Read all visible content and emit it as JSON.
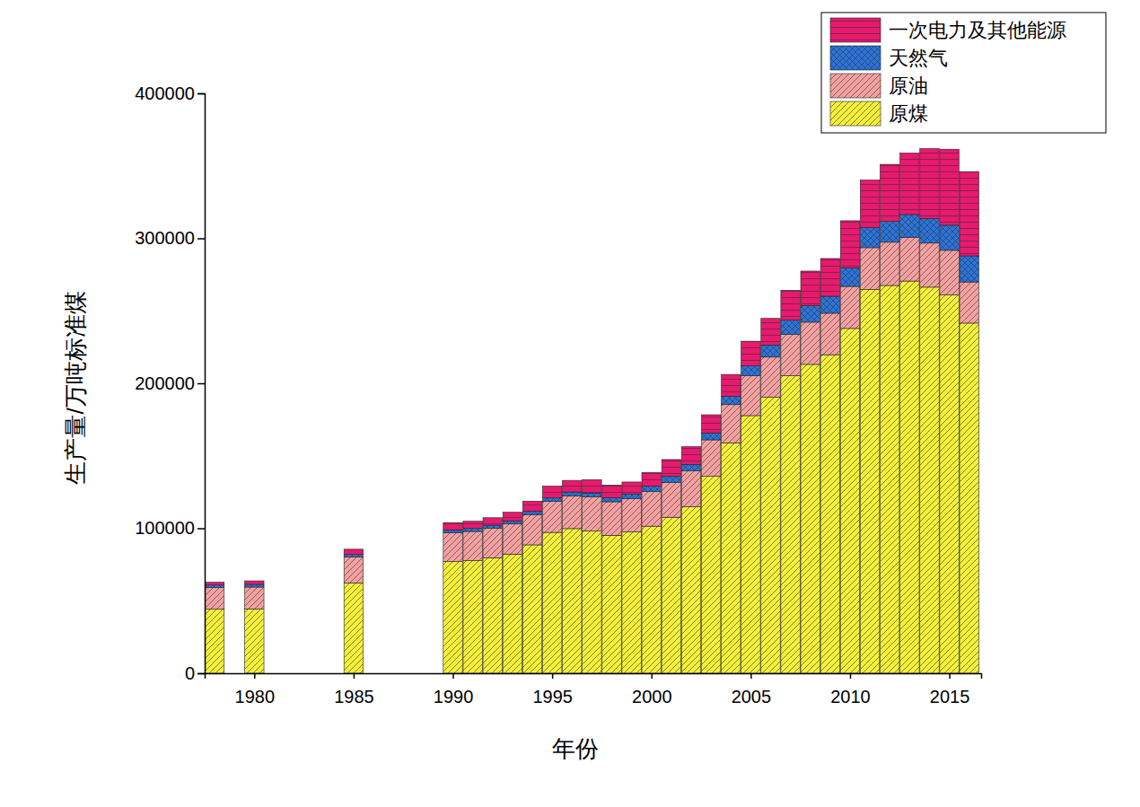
{
  "chart_data": {
    "type": "bar",
    "stacked": true,
    "legend": "upper right",
    "x_label": "年份",
    "y_label": "生产量/万吨标准煤",
    "x": [
      1978,
      1980,
      1985,
      1990,
      1991,
      1992,
      1993,
      1994,
      1995,
      1996,
      1997,
      1998,
      1999,
      2000,
      2001,
      2002,
      2003,
      2004,
      2005,
      2006,
      2007,
      2008,
      2009,
      2010,
      2011,
      2012,
      2013,
      2014,
      2015,
      2016
    ],
    "xlim": [
      1977.5,
      2016.6
    ],
    "xticks": [
      1980,
      1985,
      1990,
      1995,
      2000,
      2005,
      2010,
      2015
    ],
    "ylim": [
      0,
      400000
    ],
    "yticks": [
      0,
      100000,
      200000,
      300000,
      400000
    ],
    "series": [
      {
        "name": "原煤",
        "color": "#f4f03a",
        "values": [
          44127,
          44283,
          62328,
          77112,
          77690,
          79691,
          82184,
          88572,
          97163,
          99774,
          98093,
          95168,
          97500,
          101433,
          107620,
          114864,
          135864,
          158909,
          177733,
          190426,
          205262,
          213058,
          219719,
          237839,
          264658,
          267493,
          270523,
          266333,
          260986,
          241534
        ]
      },
      {
        "name": "原油",
        "color": "#f4a0a0",
        "values": [
          14877,
          15166,
          17872,
          19745,
          20130,
          20271,
          20768,
          20896,
          21420,
          22615,
          23489,
          23110,
          22825,
          23834,
          24030,
          24692,
          25140,
          26382,
          27484,
          27658,
          28531,
          29129,
          28609,
          29028,
          28915,
          29838,
          30138,
          30397,
          30725,
          28375
        ]
      },
      {
        "name": "天然气",
        "color": "#2a74dc",
        "values": [
          1820,
          1912,
          1711,
          2078,
          2097,
          2145,
          2221,
          2256,
          2452,
          2661,
          2803,
          2856,
          3298,
          3741,
          4128,
          4532,
          4814,
          5771,
          6871,
          8322,
          9774,
          11374,
          11730,
          12797,
          13947,
          14393,
          15786,
          17008,
          17351,
          17994
        ]
      },
      {
        "name": "一次电力及其他能源",
        "color": "#e8196e",
        "values": [
          1946,
          2374,
          3635,
          4988,
          4927,
          5149,
          5886,
          7005,
          8000,
          7982,
          9075,
          8700,
          8312,
          9561,
          11647,
          12189,
          12481,
          15046,
          16949,
          18357,
          20606,
          23858,
          26034,
          32461,
          32657,
          39317,
          42337,
          48128,
          52414,
          58134
        ]
      }
    ]
  }
}
